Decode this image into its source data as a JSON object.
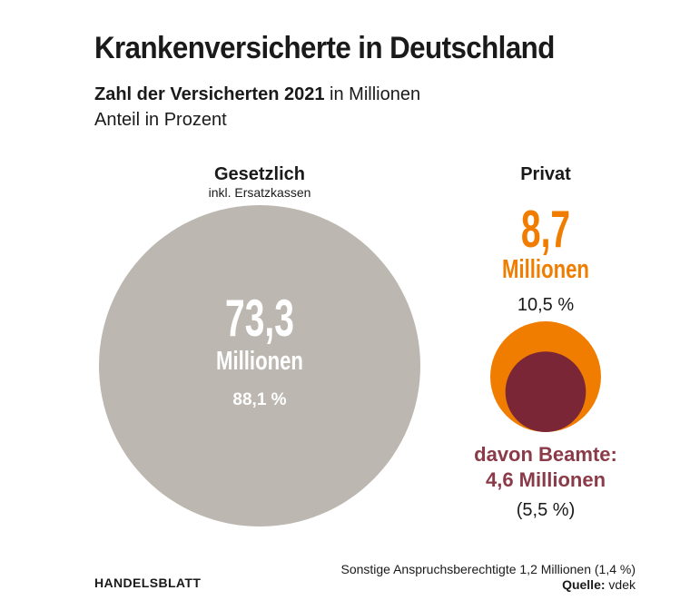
{
  "title": "Krankenversicherte in Deutschland",
  "subtitle": {
    "bold": "Zahl der Versicherten 2021",
    "unit": "in Millionen",
    "line2": "Anteil in Prozent"
  },
  "chart_data": {
    "type": "bubble",
    "items": [
      {
        "label": "Gesetzlich",
        "sublabel": "inkl. Ersatzkassen",
        "value": 73.3,
        "value_text": "73,3",
        "unit": "Millionen",
        "share": 88.1,
        "share_text": "88,1 %",
        "color": "#bcb7b0"
      },
      {
        "label": "Privat",
        "value": 8.7,
        "value_text": "8,7",
        "unit": "Millionen",
        "share": 10.5,
        "share_text": "10,5 %",
        "color": "#f07d00",
        "subset": {
          "label": "davon Beamte:",
          "value": 4.6,
          "value_text": "4,6 Millionen",
          "share": 5.5,
          "share_text": "(5,5 %)",
          "color": "#7b2636"
        }
      }
    ]
  },
  "footnote": "Sonstige Anspruchsberechtigte 1,2 Millionen (1,4 %)",
  "source": {
    "label": "Quelle:",
    "value": "vdek"
  },
  "brand": "HANDELSBLATT"
}
